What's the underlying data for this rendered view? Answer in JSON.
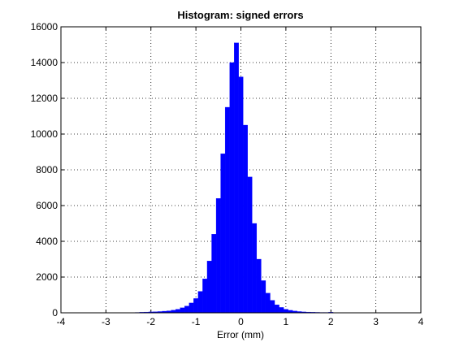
{
  "chart_data": {
    "type": "histogram",
    "title": "Histogram: signed errors",
    "x_label": "Error (mm)",
    "bins": [
      -2.35,
      -2.25,
      -2.15,
      -2.05,
      -1.95,
      -1.85,
      -1.75,
      -1.65,
      -1.55,
      -1.45,
      -1.35,
      -1.25,
      -1.15,
      -1.05,
      -0.95,
      -0.85,
      -0.75,
      -0.65,
      -0.55,
      -0.45,
      -0.35,
      -0.25,
      -0.15,
      -0.05,
      0.05,
      0.15,
      0.25,
      0.35,
      0.45,
      0.55,
      0.65,
      0.75,
      0.85,
      0.95,
      1.05,
      1.15,
      1.25,
      1.35,
      1.45,
      1.55,
      1.65,
      1.75,
      1.85,
      1.95,
      2.05,
      2.15
    ],
    "values": [
      20,
      30,
      40,
      50,
      60,
      70,
      90,
      110,
      150,
      200,
      280,
      380,
      550,
      800,
      1200,
      1900,
      2900,
      4400,
      6400,
      8900,
      11500,
      14000,
      15100,
      13200,
      10500,
      7600,
      5000,
      3000,
      1800,
      1100,
      700,
      450,
      300,
      200,
      140,
      100,
      70,
      50,
      40,
      30,
      25,
      20,
      20,
      30,
      15
    ],
    "color": "#0000ff",
    "xlim": [
      -4,
      4
    ],
    "xticks": [
      -4,
      -3,
      -2,
      -1,
      0,
      1,
      2,
      3,
      4
    ],
    "ylim": [
      0,
      16000
    ],
    "yticks": [
      0,
      2000,
      4000,
      6000,
      8000,
      10000,
      12000,
      14000,
      16000
    ],
    "grid": true
  }
}
